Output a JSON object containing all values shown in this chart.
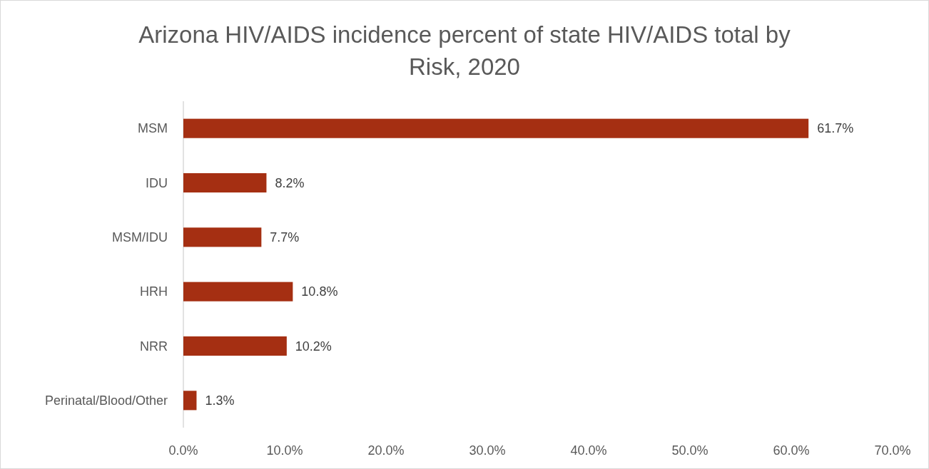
{
  "chart_data": {
    "type": "bar",
    "orientation": "horizontal",
    "title": "Arizona HIV/AIDS incidence percent of state HIV/AIDS total by Risk, 2020",
    "categories": [
      "MSM",
      "IDU",
      "MSM/IDU",
      "HRH",
      "NRR",
      "Perinatal/Blood/Other"
    ],
    "values": [
      61.7,
      8.2,
      7.7,
      10.8,
      10.2,
      1.3
    ],
    "color": "#a52f12",
    "value_labels": [
      "61.7%",
      "8.2%",
      "7.7%",
      "10.8%",
      "10.2%",
      "1.3%"
    ],
    "xlim": [
      0,
      70
    ],
    "xticks": [
      {
        "value": 0,
        "label": "0.0%"
      },
      {
        "value": 10,
        "label": "10.0%"
      },
      {
        "value": 20,
        "label": "20.0%"
      },
      {
        "value": 30,
        "label": "30.0%"
      },
      {
        "value": 40,
        "label": "40.0%"
      },
      {
        "value": 50,
        "label": "50.0%"
      },
      {
        "value": 60,
        "label": "60.0%"
      },
      {
        "value": 70,
        "label": "70.0%"
      }
    ]
  }
}
